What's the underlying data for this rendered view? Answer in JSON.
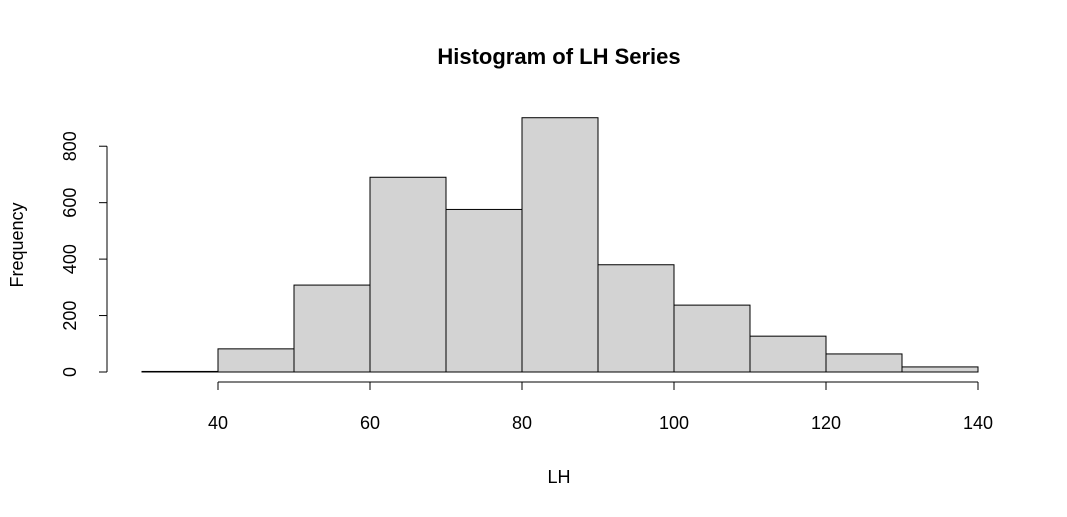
{
  "chart_data": {
    "type": "histogram",
    "title": "Histogram of LH Series",
    "xlabel": "LH",
    "ylabel": "Frequency",
    "bins": [
      {
        "start": 30,
        "end": 40,
        "count": 2
      },
      {
        "start": 40,
        "end": 50,
        "count": 82
      },
      {
        "start": 50,
        "end": 60,
        "count": 308
      },
      {
        "start": 60,
        "end": 70,
        "count": 690
      },
      {
        "start": 70,
        "end": 80,
        "count": 576
      },
      {
        "start": 80,
        "end": 90,
        "count": 901
      },
      {
        "start": 90,
        "end": 100,
        "count": 380
      },
      {
        "start": 100,
        "end": 110,
        "count": 237
      },
      {
        "start": 110,
        "end": 120,
        "count": 127
      },
      {
        "start": 120,
        "end": 130,
        "count": 64
      },
      {
        "start": 130,
        "end": 140,
        "count": 18
      }
    ],
    "xticks": [
      40,
      60,
      80,
      100,
      120,
      140
    ],
    "yticks": [
      0,
      200,
      400,
      600,
      800
    ],
    "xlim": [
      30,
      140
    ],
    "ylim": [
      0,
      900
    ],
    "grid": false,
    "colors": {
      "bar_fill": "#d3d3d3",
      "bar_stroke": "#000000"
    }
  }
}
